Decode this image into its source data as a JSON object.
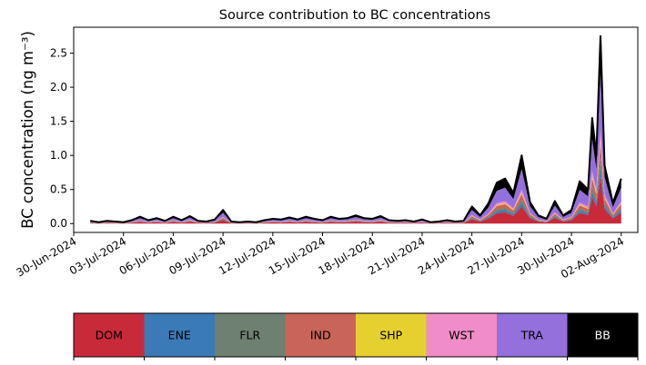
{
  "chart_data": {
    "type": "area",
    "stacked": true,
    "title": "Source contribution to BC concentrations",
    "ylabel": "BC concentration (ng m⁻³)",
    "ylim": [
      -0.13,
      2.88
    ],
    "yticks": [
      0.0,
      0.5,
      1.0,
      1.5,
      2.0,
      2.5
    ],
    "ytick_labels": [
      "0.0",
      "0.5",
      "1.0",
      "1.5",
      "2.0",
      "2.5"
    ],
    "xlim": [
      "2024-06-30T00:00",
      "2024-08-03T00:00"
    ],
    "xticks": [
      "2024-06-30",
      "2024-07-03",
      "2024-07-06",
      "2024-07-09",
      "2024-07-12",
      "2024-07-15",
      "2024-07-18",
      "2024-07-21",
      "2024-07-24",
      "2024-07-27",
      "2024-07-30",
      "2024-08-02"
    ],
    "xtick_labels": [
      "30-Jun-2024",
      "03-Jul-2024",
      "06-Jul-2024",
      "09-Jul-2024",
      "12-Jul-2024",
      "15-Jul-2024",
      "18-Jul-2024",
      "21-Jul-2024",
      "24-Jul-2024",
      "27-Jul-2024",
      "30-Jul-2024",
      "02-Aug-2024"
    ],
    "total_points": [
      [
        "2024-07-01T00:00",
        0.04
      ],
      [
        "2024-07-01T12:00",
        0.02
      ],
      [
        "2024-07-02T00:00",
        0.04
      ],
      [
        "2024-07-02T12:00",
        0.03
      ],
      [
        "2024-07-03T00:00",
        0.02
      ],
      [
        "2024-07-03T12:00",
        0.05
      ],
      [
        "2024-07-04T00:00",
        0.1
      ],
      [
        "2024-07-04T12:00",
        0.05
      ],
      [
        "2024-07-05T00:00",
        0.08
      ],
      [
        "2024-07-05T12:00",
        0.04
      ],
      [
        "2024-07-06T00:00",
        0.1
      ],
      [
        "2024-07-06T12:00",
        0.05
      ],
      [
        "2024-07-07T00:00",
        0.11
      ],
      [
        "2024-07-07T12:00",
        0.04
      ],
      [
        "2024-07-08T00:00",
        0.03
      ],
      [
        "2024-07-08T12:00",
        0.06
      ],
      [
        "2024-07-09T00:00",
        0.2
      ],
      [
        "2024-07-09T12:00",
        0.03
      ],
      [
        "2024-07-10T00:00",
        0.02
      ],
      [
        "2024-07-10T12:00",
        0.03
      ],
      [
        "2024-07-11T00:00",
        0.02
      ],
      [
        "2024-07-11T12:00",
        0.05
      ],
      [
        "2024-07-12T00:00",
        0.07
      ],
      [
        "2024-07-12T12:00",
        0.06
      ],
      [
        "2024-07-13T00:00",
        0.09
      ],
      [
        "2024-07-13T12:00",
        0.06
      ],
      [
        "2024-07-14T00:00",
        0.1
      ],
      [
        "2024-07-14T12:00",
        0.07
      ],
      [
        "2024-07-15T00:00",
        0.05
      ],
      [
        "2024-07-15T12:00",
        0.1
      ],
      [
        "2024-07-16T00:00",
        0.07
      ],
      [
        "2024-07-16T12:00",
        0.08
      ],
      [
        "2024-07-17T00:00",
        0.12
      ],
      [
        "2024-07-17T12:00",
        0.08
      ],
      [
        "2024-07-18T00:00",
        0.07
      ],
      [
        "2024-07-18T12:00",
        0.11
      ],
      [
        "2024-07-19T00:00",
        0.05
      ],
      [
        "2024-07-19T12:00",
        0.04
      ],
      [
        "2024-07-20T00:00",
        0.05
      ],
      [
        "2024-07-20T12:00",
        0.03
      ],
      [
        "2024-07-21T00:00",
        0.06
      ],
      [
        "2024-07-21T12:00",
        0.02
      ],
      [
        "2024-07-22T00:00",
        0.03
      ],
      [
        "2024-07-22T12:00",
        0.05
      ],
      [
        "2024-07-23T00:00",
        0.03
      ],
      [
        "2024-07-23T12:00",
        0.04
      ],
      [
        "2024-07-24T00:00",
        0.25
      ],
      [
        "2024-07-24T12:00",
        0.12
      ],
      [
        "2024-07-25T00:00",
        0.3
      ],
      [
        "2024-07-25T12:00",
        0.6
      ],
      [
        "2024-07-26T00:00",
        0.66
      ],
      [
        "2024-07-26T12:00",
        0.45
      ],
      [
        "2024-07-27T00:00",
        1.0
      ],
      [
        "2024-07-27T12:00",
        0.32
      ],
      [
        "2024-07-28T00:00",
        0.12
      ],
      [
        "2024-07-28T12:00",
        0.07
      ],
      [
        "2024-07-29T00:00",
        0.33
      ],
      [
        "2024-07-29T12:00",
        0.12
      ],
      [
        "2024-07-30T00:00",
        0.2
      ],
      [
        "2024-07-30T12:00",
        0.62
      ],
      [
        "2024-07-31T00:00",
        0.5
      ],
      [
        "2024-07-31T06:00",
        1.55
      ],
      [
        "2024-07-31T12:00",
        1.0
      ],
      [
        "2024-07-31T18:00",
        2.75
      ],
      [
        "2024-08-01T00:00",
        0.85
      ],
      [
        "2024-08-01T12:00",
        0.3
      ],
      [
        "2024-08-02T00:00",
        0.66
      ]
    ],
    "series": [
      {
        "name": "DOM",
        "color": "#c82a3a",
        "fractions": [
          0.25,
          0.25,
          0.25,
          0.25,
          0.25,
          0.25,
          0.25,
          0.25,
          0.25,
          0.25,
          0.25,
          0.25,
          0.25,
          0.25,
          0.25,
          0.25,
          0.25,
          0.25,
          0.25,
          0.25,
          0.25,
          0.25,
          0.25,
          0.25,
          0.25,
          0.25,
          0.25,
          0.25,
          0.25,
          0.25,
          0.25,
          0.25,
          0.25,
          0.25,
          0.25,
          0.25,
          0.25,
          0.25,
          0.25,
          0.25,
          0.25,
          0.25,
          0.25,
          0.25,
          0.25,
          0.25,
          0.25,
          0.25,
          0.25,
          0.25,
          0.25,
          0.25,
          0.25,
          0.25,
          0.25,
          0.25,
          0.25,
          0.25,
          0.25,
          0.25,
          0.25,
          0.25,
          0.25,
          0.25,
          0.25,
          0.25,
          0.25
        ]
      },
      {
        "name": "ENE",
        "color": "#3a7ab7",
        "fractions": [
          0.05,
          0.05,
          0.05,
          0.05,
          0.05,
          0.05,
          0.05,
          0.05,
          0.05,
          0.05,
          0.05,
          0.05,
          0.05,
          0.05,
          0.05,
          0.05,
          0.05,
          0.05,
          0.05,
          0.05,
          0.05,
          0.05,
          0.05,
          0.05,
          0.05,
          0.05,
          0.05,
          0.05,
          0.05,
          0.05,
          0.05,
          0.05,
          0.05,
          0.05,
          0.05,
          0.05,
          0.05,
          0.05,
          0.05,
          0.05,
          0.05,
          0.05,
          0.05,
          0.05,
          0.05,
          0.05,
          0.05,
          0.05,
          0.05,
          0.05,
          0.05,
          0.05,
          0.05,
          0.05,
          0.05,
          0.05,
          0.05,
          0.05,
          0.05,
          0.05,
          0.05,
          0.05,
          0.05,
          0.05,
          0.05,
          0.05,
          0.05
        ]
      },
      {
        "name": "FLR",
        "color": "#6e8070",
        "fractions": [
          0.05,
          0.05,
          0.05,
          0.05,
          0.05,
          0.05,
          0.05,
          0.05,
          0.05,
          0.05,
          0.05,
          0.05,
          0.05,
          0.05,
          0.05,
          0.05,
          0.05,
          0.05,
          0.05,
          0.05,
          0.05,
          0.05,
          0.05,
          0.05,
          0.05,
          0.05,
          0.05,
          0.05,
          0.05,
          0.05,
          0.05,
          0.05,
          0.05,
          0.05,
          0.05,
          0.05,
          0.05,
          0.05,
          0.05,
          0.05,
          0.05,
          0.05,
          0.05,
          0.05,
          0.05,
          0.05,
          0.05,
          0.05,
          0.05,
          0.05,
          0.05,
          0.05,
          0.05,
          0.05,
          0.05,
          0.05,
          0.05,
          0.05,
          0.05,
          0.05,
          0.05,
          0.05,
          0.05,
          0.05,
          0.05,
          0.05,
          0.05
        ]
      },
      {
        "name": "IND",
        "color": "#c86458",
        "fractions": [
          0.08,
          0.08,
          0.08,
          0.08,
          0.08,
          0.08,
          0.08,
          0.08,
          0.08,
          0.08,
          0.08,
          0.08,
          0.08,
          0.08,
          0.08,
          0.08,
          0.08,
          0.08,
          0.08,
          0.08,
          0.08,
          0.08,
          0.08,
          0.08,
          0.08,
          0.08,
          0.08,
          0.08,
          0.08,
          0.08,
          0.08,
          0.08,
          0.08,
          0.08,
          0.08,
          0.08,
          0.08,
          0.08,
          0.08,
          0.08,
          0.08,
          0.08,
          0.08,
          0.08,
          0.08,
          0.08,
          0.08,
          0.08,
          0.08,
          0.08,
          0.08,
          0.08,
          0.08,
          0.08,
          0.08,
          0.08,
          0.08,
          0.08,
          0.08,
          0.08,
          0.08,
          0.08,
          0.08,
          0.08,
          0.08,
          0.08,
          0.08
        ]
      },
      {
        "name": "SHP",
        "color": "#e6d030",
        "fractions": [
          0.02,
          0.02,
          0.02,
          0.02,
          0.02,
          0.02,
          0.02,
          0.02,
          0.02,
          0.02,
          0.02,
          0.02,
          0.02,
          0.02,
          0.02,
          0.02,
          0.02,
          0.02,
          0.02,
          0.02,
          0.02,
          0.02,
          0.02,
          0.02,
          0.02,
          0.02,
          0.02,
          0.02,
          0.02,
          0.02,
          0.02,
          0.02,
          0.02,
          0.02,
          0.02,
          0.02,
          0.02,
          0.02,
          0.02,
          0.02,
          0.02,
          0.02,
          0.02,
          0.02,
          0.02,
          0.02,
          0.02,
          0.02,
          0.02,
          0.02,
          0.02,
          0.02,
          0.02,
          0.02,
          0.02,
          0.02,
          0.02,
          0.02,
          0.02,
          0.02,
          0.02,
          0.02,
          0.02,
          0.02,
          0.02,
          0.02,
          0.02
        ]
      },
      {
        "name": "WST",
        "color": "#f08cc8",
        "fractions": [
          0.05,
          0.05,
          0.05,
          0.05,
          0.05,
          0.05,
          0.05,
          0.05,
          0.05,
          0.05,
          0.05,
          0.05,
          0.05,
          0.05,
          0.05,
          0.05,
          0.05,
          0.05,
          0.05,
          0.05,
          0.05,
          0.05,
          0.05,
          0.05,
          0.05,
          0.05,
          0.05,
          0.05,
          0.05,
          0.05,
          0.05,
          0.05,
          0.05,
          0.05,
          0.05,
          0.05,
          0.05,
          0.05,
          0.05,
          0.05,
          0.05,
          0.05,
          0.05,
          0.05,
          0.05,
          0.05,
          0.05,
          0.05,
          0.05,
          0.05,
          0.05,
          0.05,
          0.05,
          0.05,
          0.05,
          0.05,
          0.05,
          0.05,
          0.05,
          0.05,
          0.05,
          0.05,
          0.05,
          0.05,
          0.05,
          0.05,
          0.05
        ]
      },
      {
        "name": "TRA",
        "color": "#9370db",
        "fractions": [
          0.3,
          0.3,
          0.3,
          0.3,
          0.3,
          0.3,
          0.3,
          0.3,
          0.3,
          0.3,
          0.3,
          0.3,
          0.3,
          0.3,
          0.3,
          0.3,
          0.3,
          0.3,
          0.3,
          0.3,
          0.3,
          0.3,
          0.3,
          0.3,
          0.3,
          0.3,
          0.3,
          0.3,
          0.3,
          0.3,
          0.3,
          0.3,
          0.3,
          0.3,
          0.3,
          0.3,
          0.3,
          0.3,
          0.3,
          0.3,
          0.3,
          0.3,
          0.3,
          0.3,
          0.3,
          0.3,
          0.3,
          0.3,
          0.3,
          0.3,
          0.3,
          0.3,
          0.3,
          0.3,
          0.3,
          0.3,
          0.3,
          0.3,
          0.3,
          0.3,
          0.3,
          0.3,
          0.3,
          0.3,
          0.3,
          0.3,
          0.3
        ]
      },
      {
        "name": "BB",
        "color": "#000000",
        "fractions": [
          0.2,
          0.2,
          0.2,
          0.2,
          0.2,
          0.2,
          0.2,
          0.2,
          0.2,
          0.2,
          0.2,
          0.2,
          0.2,
          0.2,
          0.2,
          0.2,
          0.2,
          0.2,
          0.2,
          0.2,
          0.2,
          0.2,
          0.2,
          0.2,
          0.2,
          0.2,
          0.2,
          0.2,
          0.2,
          0.2,
          0.2,
          0.2,
          0.2,
          0.2,
          0.2,
          0.2,
          0.2,
          0.2,
          0.2,
          0.2,
          0.2,
          0.2,
          0.2,
          0.2,
          0.2,
          0.2,
          0.2,
          0.2,
          0.2,
          0.2,
          0.2,
          0.2,
          0.2,
          0.2,
          0.2,
          0.2,
          0.2,
          0.2,
          0.2,
          0.2,
          0.2,
          0.2,
          0.2,
          0.2,
          0.2,
          0.2,
          0.2
        ]
      }
    ],
    "legend": [
      {
        "name": "DOM",
        "color": "#c82a3a",
        "text_color": "#000000"
      },
      {
        "name": "ENE",
        "color": "#3a7ab7",
        "text_color": "#000000"
      },
      {
        "name": "FLR",
        "color": "#6e8070",
        "text_color": "#000000"
      },
      {
        "name": "IND",
        "color": "#c86458",
        "text_color": "#000000"
      },
      {
        "name": "SHP",
        "color": "#e6d030",
        "text_color": "#000000"
      },
      {
        "name": "WST",
        "color": "#f08cc8",
        "text_color": "#000000"
      },
      {
        "name": "TRA",
        "color": "#9370db",
        "text_color": "#000000"
      },
      {
        "name": "BB",
        "color": "#000000",
        "text_color": "#ffffff"
      }
    ],
    "legend_placement": "bottom colorbar",
    "grid": false
  }
}
